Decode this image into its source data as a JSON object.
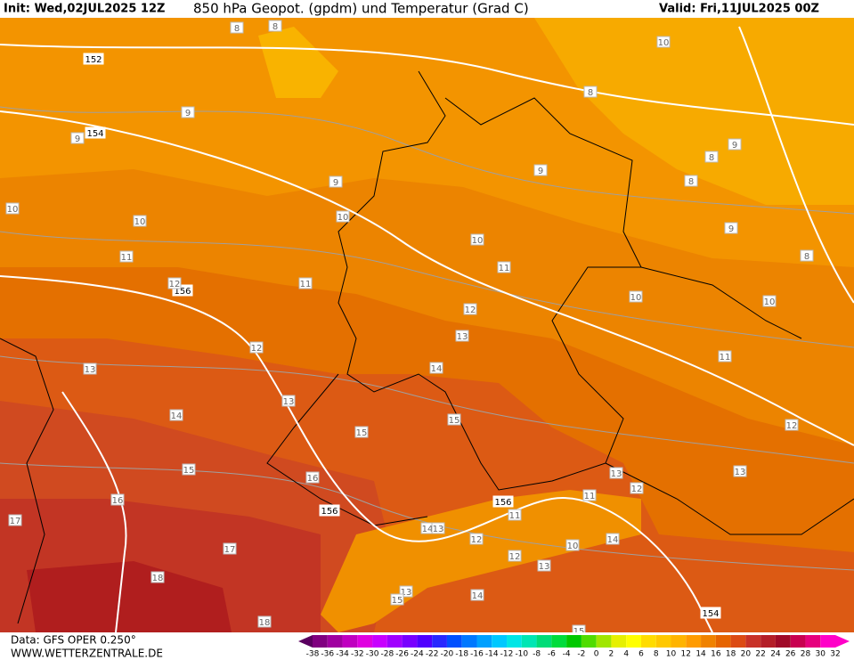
{
  "header": {
    "init": "Init: Wed,02JUL2025 12Z",
    "title": "850 hPa Geopot. (gpdm) und Temperatur (Grad C)",
    "valid": "Valid: Fri,11JUL2025 00Z"
  },
  "footer": {
    "data": "Data: GFS OPER 0.250°",
    "site": "WWW.WETTERZENTRALE.DE"
  },
  "geopotential_labels": [
    152,
    154,
    156,
    156,
    156,
    154
  ],
  "temperature_labels": [
    8,
    8,
    10,
    8,
    9,
    9,
    9,
    8,
    8,
    9,
    9,
    10,
    10,
    10,
    10,
    9,
    8,
    11,
    11,
    11,
    12,
    10,
    10,
    12,
    13,
    12,
    11,
    13,
    14,
    13,
    14,
    15,
    15,
    12,
    15,
    13,
    13,
    16,
    12,
    16,
    11,
    11,
    17,
    14,
    13,
    12,
    10,
    14,
    12,
    17,
    13,
    18,
    13,
    14,
    15,
    18,
    15
  ],
  "scale": {
    "labels": [
      -38,
      -36,
      -34,
      -32,
      -30,
      -28,
      -26,
      -24,
      -22,
      -20,
      -18,
      -16,
      -14,
      -12,
      -10,
      -8,
      -6,
      -4,
      -2,
      0,
      2,
      4,
      6,
      8,
      10,
      12,
      14,
      16,
      18,
      20,
      22,
      24,
      26,
      28,
      30,
      32
    ],
    "colors": [
      "#5a0060",
      "#800080",
      "#a000a0",
      "#c000c0",
      "#e000e0",
      "#c800ff",
      "#a000ff",
      "#7800ff",
      "#5000ff",
      "#2828ff",
      "#0050ff",
      "#0078ff",
      "#00a0ff",
      "#00c8ff",
      "#00e6e6",
      "#00e6b4",
      "#00dc78",
      "#00dc3c",
      "#00c800",
      "#50dc00",
      "#a0e600",
      "#e6f000",
      "#ffff00",
      "#ffdc00",
      "#ffc800",
      "#ffb400",
      "#ff9b00",
      "#f08200",
      "#e66400",
      "#dc4b14",
      "#c83228",
      "#b41e28",
      "#a00a28",
      "#c80050",
      "#e6007d",
      "#ff00c8"
    ]
  }
}
